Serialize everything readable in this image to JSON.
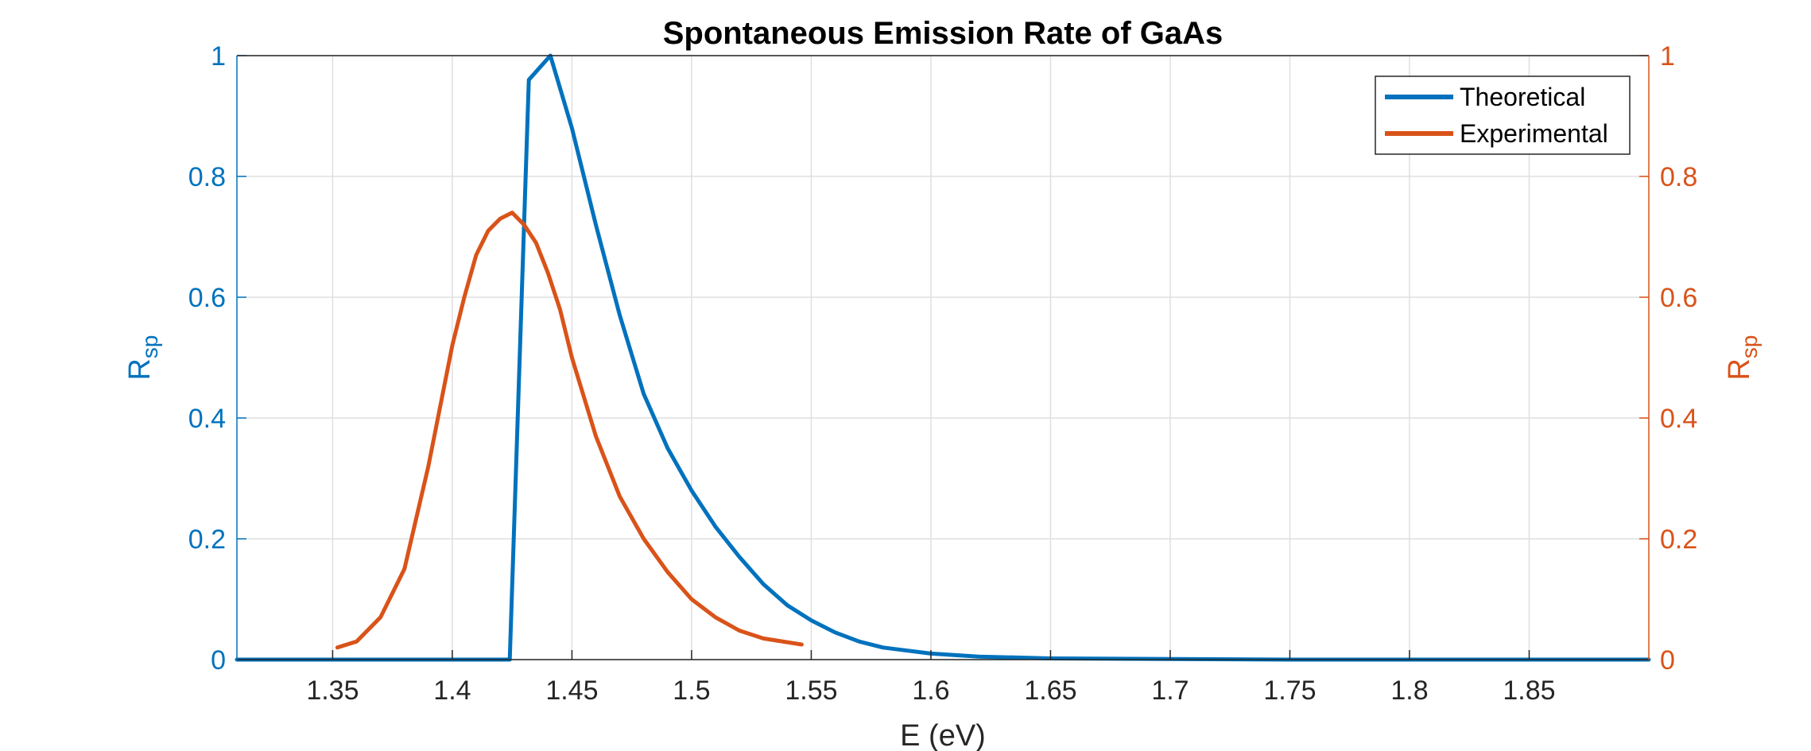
{
  "chart_data": {
    "type": "line",
    "title": "Spontaneous Emission Rate of GaAs",
    "xlabel": "E (eV)",
    "ylabel_left": {
      "main": "R",
      "sub": "sp"
    },
    "ylabel_right": {
      "main": "R",
      "sub": "sp"
    },
    "xlim": [
      1.31,
      1.9
    ],
    "ylim_left": [
      0,
      1
    ],
    "ylim_right": [
      0,
      1
    ],
    "x_ticks": [
      "1.35",
      "1.4",
      "1.45",
      "1.5",
      "1.55",
      "1.6",
      "1.65",
      "1.7",
      "1.75",
      "1.8",
      "1.85"
    ],
    "y_ticks_left": [
      "0",
      "0.2",
      "0.4",
      "0.6",
      "0.8",
      "1"
    ],
    "y_ticks_right": [
      "0",
      "0.2",
      "0.4",
      "0.6",
      "0.8",
      "1"
    ],
    "grid": true,
    "legend_position": "top-right",
    "colors": {
      "left_axis": "#0072BD",
      "right_axis": "#D95319",
      "grid": "#DFDFDF",
      "axis": "#262626"
    },
    "series": [
      {
        "name": "Theoretical",
        "color": "#0072BD",
        "axis": "left",
        "x": [
          1.31,
          1.35,
          1.4,
          1.424,
          1.432,
          1.441,
          1.45,
          1.46,
          1.47,
          1.48,
          1.49,
          1.5,
          1.51,
          1.52,
          1.53,
          1.54,
          1.55,
          1.56,
          1.57,
          1.58,
          1.6,
          1.62,
          1.65,
          1.7,
          1.75,
          1.8,
          1.9
        ],
        "y": [
          0,
          0,
          0,
          0,
          0.96,
          1.0,
          0.88,
          0.72,
          0.57,
          0.44,
          0.35,
          0.28,
          0.22,
          0.17,
          0.125,
          0.09,
          0.065,
          0.045,
          0.03,
          0.02,
          0.01,
          0.005,
          0.002,
          0.001,
          0,
          0,
          0
        ]
      },
      {
        "name": "Experimental",
        "color": "#D95319",
        "axis": "right",
        "x": [
          1.352,
          1.36,
          1.37,
          1.38,
          1.39,
          1.4,
          1.405,
          1.41,
          1.415,
          1.42,
          1.425,
          1.43,
          1.435,
          1.44,
          1.445,
          1.45,
          1.46,
          1.47,
          1.48,
          1.49,
          1.5,
          1.51,
          1.52,
          1.53,
          1.546
        ],
        "y": [
          0.02,
          0.03,
          0.07,
          0.15,
          0.32,
          0.52,
          0.6,
          0.67,
          0.71,
          0.73,
          0.74,
          0.72,
          0.69,
          0.64,
          0.58,
          0.5,
          0.37,
          0.27,
          0.2,
          0.145,
          0.1,
          0.07,
          0.048,
          0.035,
          0.025
        ]
      }
    ]
  }
}
